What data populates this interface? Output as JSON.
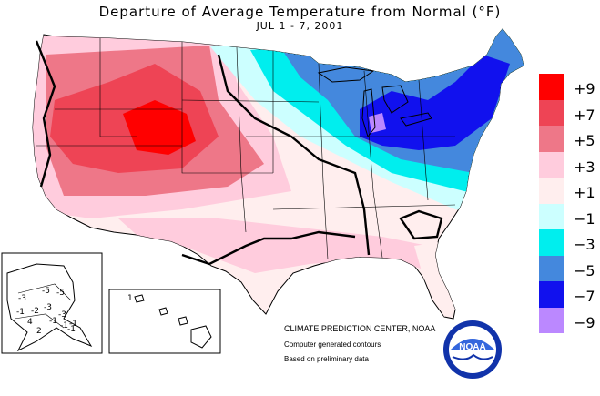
{
  "title": "Departure of Average Temperature from Normal (°F)",
  "subtitle": "JUL 1 - 7, 2001",
  "legend": [
    {
      "label": "+9",
      "color": "#ff0000"
    },
    {
      "label": "+7",
      "color": "#ee4455"
    },
    {
      "label": "+5",
      "color": "#ee7788"
    },
    {
      "label": "+3",
      "color": "#ffccdd"
    },
    {
      "label": "+1",
      "color": "#ffeeee"
    },
    {
      "label": "−1",
      "color": "#ccffff"
    },
    {
      "label": "−3",
      "color": "#00eeee"
    },
    {
      "label": "−5",
      "color": "#4488dd"
    },
    {
      "label": "−7",
      "color": "#1111ee"
    },
    {
      "label": "−9",
      "color": "#bb88ff"
    }
  ],
  "credits": {
    "center": "CLIMATE PREDICTION CENTER, NOAA",
    "line1": "Computer generated contours",
    "line2": "Based on preliminary data"
  },
  "logo": {
    "text": "NOAA",
    "ring_color": "#1133aa"
  },
  "alaska_labels": [
    "-3",
    "-5",
    "-5",
    "-3",
    "-2",
    "-3",
    "-1",
    "-1",
    "-1",
    "-1",
    "4",
    "2",
    "-1"
  ],
  "hawaii_labels": [
    "1"
  ]
}
